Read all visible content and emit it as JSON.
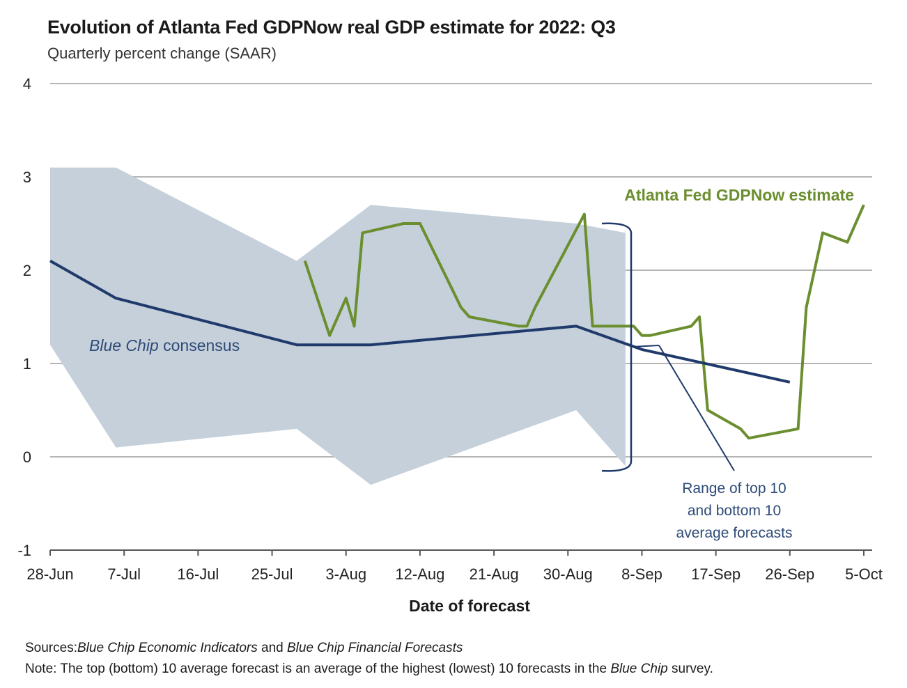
{
  "title": "Evolution of Atlanta Fed GDPNow real GDP estimate for 2022: Q3",
  "subtitle": "Quarterly percent change (SAAR)",
  "chart_data": {
    "type": "line",
    "xlabel": "Date of forecast",
    "ylabel": "",
    "ylim": [
      -1,
      4
    ],
    "yticks": [
      -1,
      0,
      1,
      2,
      3,
      4
    ],
    "grid": "horizontal",
    "x_start": "2022-06-28",
    "x_end": "2022-10-05",
    "xticks": [
      {
        "date": "2022-06-28",
        "label": "28-Jun"
      },
      {
        "date": "2022-07-07",
        "label": "7-Jul"
      },
      {
        "date": "2022-07-16",
        "label": "16-Jul"
      },
      {
        "date": "2022-07-25",
        "label": "25-Jul"
      },
      {
        "date": "2022-08-03",
        "label": "3-Aug"
      },
      {
        "date": "2022-08-12",
        "label": "12-Aug"
      },
      {
        "date": "2022-08-21",
        "label": "21-Aug"
      },
      {
        "date": "2022-08-30",
        "label": "30-Aug"
      },
      {
        "date": "2022-09-08",
        "label": "8-Sep"
      },
      {
        "date": "2022-09-17",
        "label": "17-Sep"
      },
      {
        "date": "2022-09-26",
        "label": "26-Sep"
      },
      {
        "date": "2022-10-05",
        "label": "5-Oct"
      }
    ],
    "series": [
      {
        "name": "Atlanta Fed GDPNow estimate",
        "color": "#6b8e2f",
        "points": [
          {
            "x": "2022-07-29",
            "y": 2.1
          },
          {
            "x": "2022-08-01",
            "y": 1.3
          },
          {
            "x": "2022-08-03",
            "y": 1.7
          },
          {
            "x": "2022-08-04",
            "y": 1.4
          },
          {
            "x": "2022-08-05",
            "y": 2.4
          },
          {
            "x": "2022-08-10",
            "y": 2.5
          },
          {
            "x": "2022-08-12",
            "y": 2.5
          },
          {
            "x": "2022-08-17",
            "y": 1.6
          },
          {
            "x": "2022-08-18",
            "y": 1.5
          },
          {
            "x": "2022-08-24",
            "y": 1.4
          },
          {
            "x": "2022-08-25",
            "y": 1.4
          },
          {
            "x": "2022-08-26",
            "y": 1.6
          },
          {
            "x": "2022-09-01",
            "y": 2.6
          },
          {
            "x": "2022-09-02",
            "y": 1.4
          },
          {
            "x": "2022-09-07",
            "y": 1.4
          },
          {
            "x": "2022-09-08",
            "y": 1.3
          },
          {
            "x": "2022-09-09",
            "y": 1.3
          },
          {
            "x": "2022-09-14",
            "y": 1.4
          },
          {
            "x": "2022-09-15",
            "y": 1.5
          },
          {
            "x": "2022-09-16",
            "y": 0.5
          },
          {
            "x": "2022-09-20",
            "y": 0.3
          },
          {
            "x": "2022-09-21",
            "y": 0.2
          },
          {
            "x": "2022-09-27",
            "y": 0.3
          },
          {
            "x": "2022-09-28",
            "y": 1.6
          },
          {
            "x": "2022-09-30",
            "y": 2.4
          },
          {
            "x": "2022-10-03",
            "y": 2.3
          },
          {
            "x": "2022-10-05",
            "y": 2.7
          }
        ]
      },
      {
        "name": "Blue Chip consensus",
        "color": "#1f3a6b",
        "points": [
          {
            "x": "2022-06-28",
            "y": 2.1
          },
          {
            "x": "2022-07-06",
            "y": 1.7
          },
          {
            "x": "2022-07-28",
            "y": 1.2
          },
          {
            "x": "2022-08-06",
            "y": 1.2
          },
          {
            "x": "2022-08-31",
            "y": 1.4
          },
          {
            "x": "2022-09-08",
            "y": 1.15
          },
          {
            "x": "2022-09-26",
            "y": 0.8
          }
        ]
      }
    ],
    "band": {
      "name": "Range of top 10 and bottom 10 average forecasts",
      "color": "#c5d0da",
      "upper": [
        {
          "x": "2022-06-28",
          "y": 3.1
        },
        {
          "x": "2022-07-06",
          "y": 3.1
        },
        {
          "x": "2022-07-28",
          "y": 2.1
        },
        {
          "x": "2022-08-06",
          "y": 2.7
        },
        {
          "x": "2022-08-31",
          "y": 2.5
        },
        {
          "x": "2022-09-06",
          "y": 2.4
        }
      ],
      "lower": [
        {
          "x": "2022-06-28",
          "y": 1.2
        },
        {
          "x": "2022-07-06",
          "y": 0.1
        },
        {
          "x": "2022-07-28",
          "y": 0.3
        },
        {
          "x": "2022-08-06",
          "y": -0.3
        },
        {
          "x": "2022-08-31",
          "y": 0.5
        },
        {
          "x": "2022-09-06",
          "y": -0.1
        }
      ]
    },
    "annotations": {
      "gdpnow_label": "Atlanta Fed GDPNow estimate",
      "bluechip_label_italic": "Blue Chip",
      "bluechip_label_rest": " consensus",
      "range_label_lines": [
        "Range of top 10",
        "and bottom 10",
        "average forecasts"
      ]
    }
  },
  "footnotes": {
    "sources_label": "Sources:",
    "sources_italic_1": "Blue Chip Economic Indicators",
    "sources_and": " and ",
    "sources_italic_2": "Blue Chip Financial Forecasts",
    "note_label": "Note:",
    "note_text_before": " The top (bottom) 10 average forecast is an average of the highest (lowest) 10 forecasts in the ",
    "note_italic": "Blue Chip",
    "note_text_after": " survey."
  }
}
